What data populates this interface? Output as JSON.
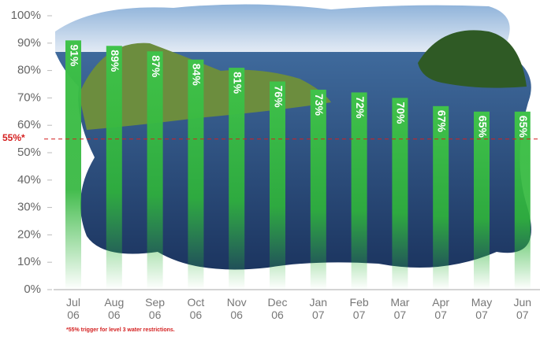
{
  "chart_data": {
    "type": "bar",
    "categories": [
      "Jul 06",
      "Aug 06",
      "Sep 06",
      "Oct 06",
      "Nov 06",
      "Dec 06",
      "Jan 07",
      "Feb 07",
      "Mar 07",
      "Apr 07",
      "May 07",
      "Jun 07"
    ],
    "values": [
      91,
      89,
      87,
      84,
      81,
      76,
      73,
      72,
      70,
      67,
      65,
      65
    ],
    "value_labels": [
      "91%",
      "89%",
      "87%",
      "84%",
      "81%",
      "76%",
      "73%",
      "72%",
      "70%",
      "67%",
      "65%",
      "65%"
    ],
    "color": "#2fb53a",
    "ylim": [
      0,
      100
    ],
    "yticks": [
      {
        "value": 0,
        "label": "0%"
      },
      {
        "value": 10,
        "label": "10%"
      },
      {
        "value": 20,
        "label": "20%"
      },
      {
        "value": 30,
        "label": "30%"
      },
      {
        "value": 40,
        "label": "40%"
      },
      {
        "value": 50,
        "label": "50%"
      },
      {
        "value": 60,
        "label": "60%"
      },
      {
        "value": 70,
        "label": "70%"
      },
      {
        "value": 80,
        "label": "80%"
      },
      {
        "value": 90,
        "label": "90%"
      },
      {
        "value": 100,
        "label": "100%"
      }
    ],
    "threshold": {
      "value": 55,
      "label": "55%*",
      "color": "#d42020"
    },
    "footnote": "*55% trigger for level 3 water restrictions."
  }
}
